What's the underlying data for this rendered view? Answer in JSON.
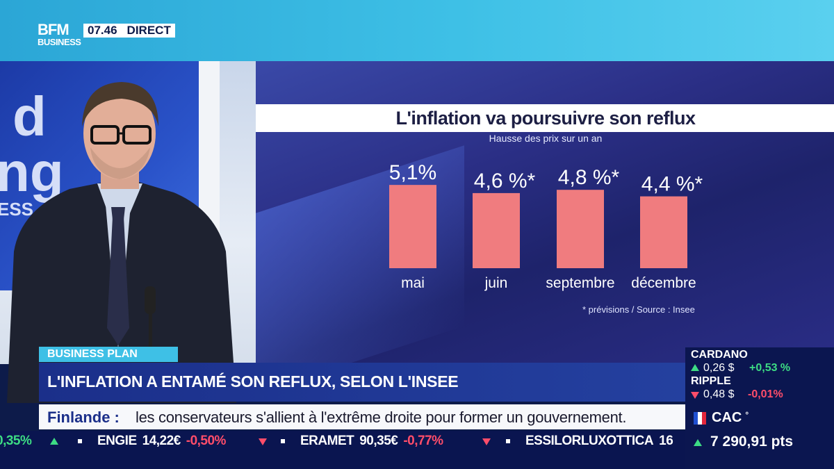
{
  "channel": {
    "logo_line1": "BFM",
    "logo_line2": "BUSINESS",
    "time": "07.46",
    "live_label": "DIRECT"
  },
  "studio": {
    "bg_word1": "d",
    "bg_word2": "ng",
    "bg_word3": "ESS"
  },
  "chart_data": {
    "type": "bar",
    "title": "L'inflation va poursuivre son reflux",
    "subtitle": "Hausse des prix sur un an",
    "categories": [
      "mai",
      "juin",
      "septembre",
      "décembre"
    ],
    "values": [
      5.1,
      4.6,
      4.8,
      4.4
    ],
    "value_labels": [
      "5,1%",
      "4,6 %*",
      "4,8 %*",
      "4,4 %*"
    ],
    "note": "* prévisions / Source : Insee",
    "bar_color": "#f07c7f",
    "grid": false,
    "legend": "none"
  },
  "lower_third": {
    "tag": "BUSINESS PLAN",
    "headline": "L'INFLATION A ENTAMÉ SON REFLUX, SELON L'INSEE",
    "news_label": "Finlande :",
    "news_text": "les conservateurs s'allient à l'extrême droite pour former un gouvernement."
  },
  "ticker": [
    {
      "change": "0,35%"
    },
    {
      "name": "ENGIE",
      "value": "14,22€",
      "change": "-0,50%"
    },
    {
      "name": "ERAMET",
      "value": "90,35€",
      "change": "-0,77%"
    },
    {
      "name": "ESSILORLUXOTTICA",
      "value": "16"
    }
  ],
  "market": {
    "cardano": {
      "name": "CARDANO",
      "value": "0,26 $",
      "change": "+0,53 %",
      "color": "#3ddc84"
    },
    "ripple": {
      "name": "RIPPLE",
      "value": "0,48 $",
      "change": "-0,01%",
      "color": "#ff4d6a"
    },
    "cac": {
      "name": "CAC",
      "marker": "°",
      "value": "7 290,91 pts"
    }
  }
}
